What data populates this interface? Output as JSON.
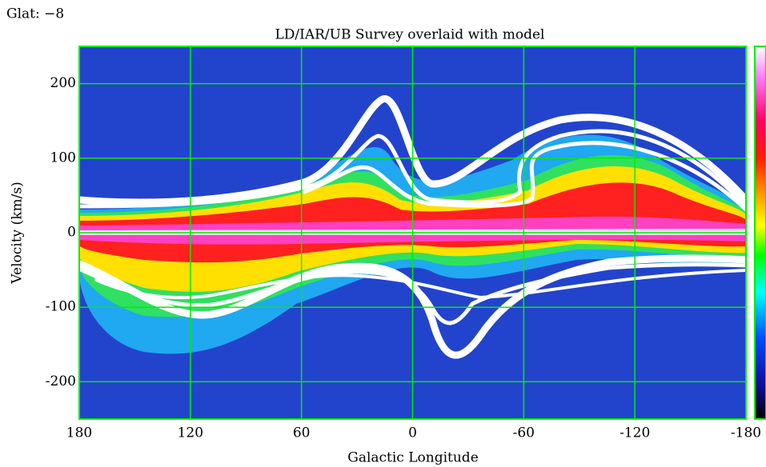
{
  "chart_data": {
    "type": "heatmap",
    "annotation": "Glat: −8",
    "title": "LD/IAR/UB Survey overlaid with model",
    "xlabel": "Galactic Longitude",
    "ylabel": "Velocity (km/s)",
    "xlim": [
      180,
      -180
    ],
    "xticks": [
      180,
      120,
      60,
      0,
      -60,
      -120,
      -180
    ],
    "ylim": [
      -250,
      250
    ],
    "yticks": [
      -200,
      -100,
      0,
      100,
      200
    ],
    "grid": true,
    "grid_color": "#00ee00"
  }
}
